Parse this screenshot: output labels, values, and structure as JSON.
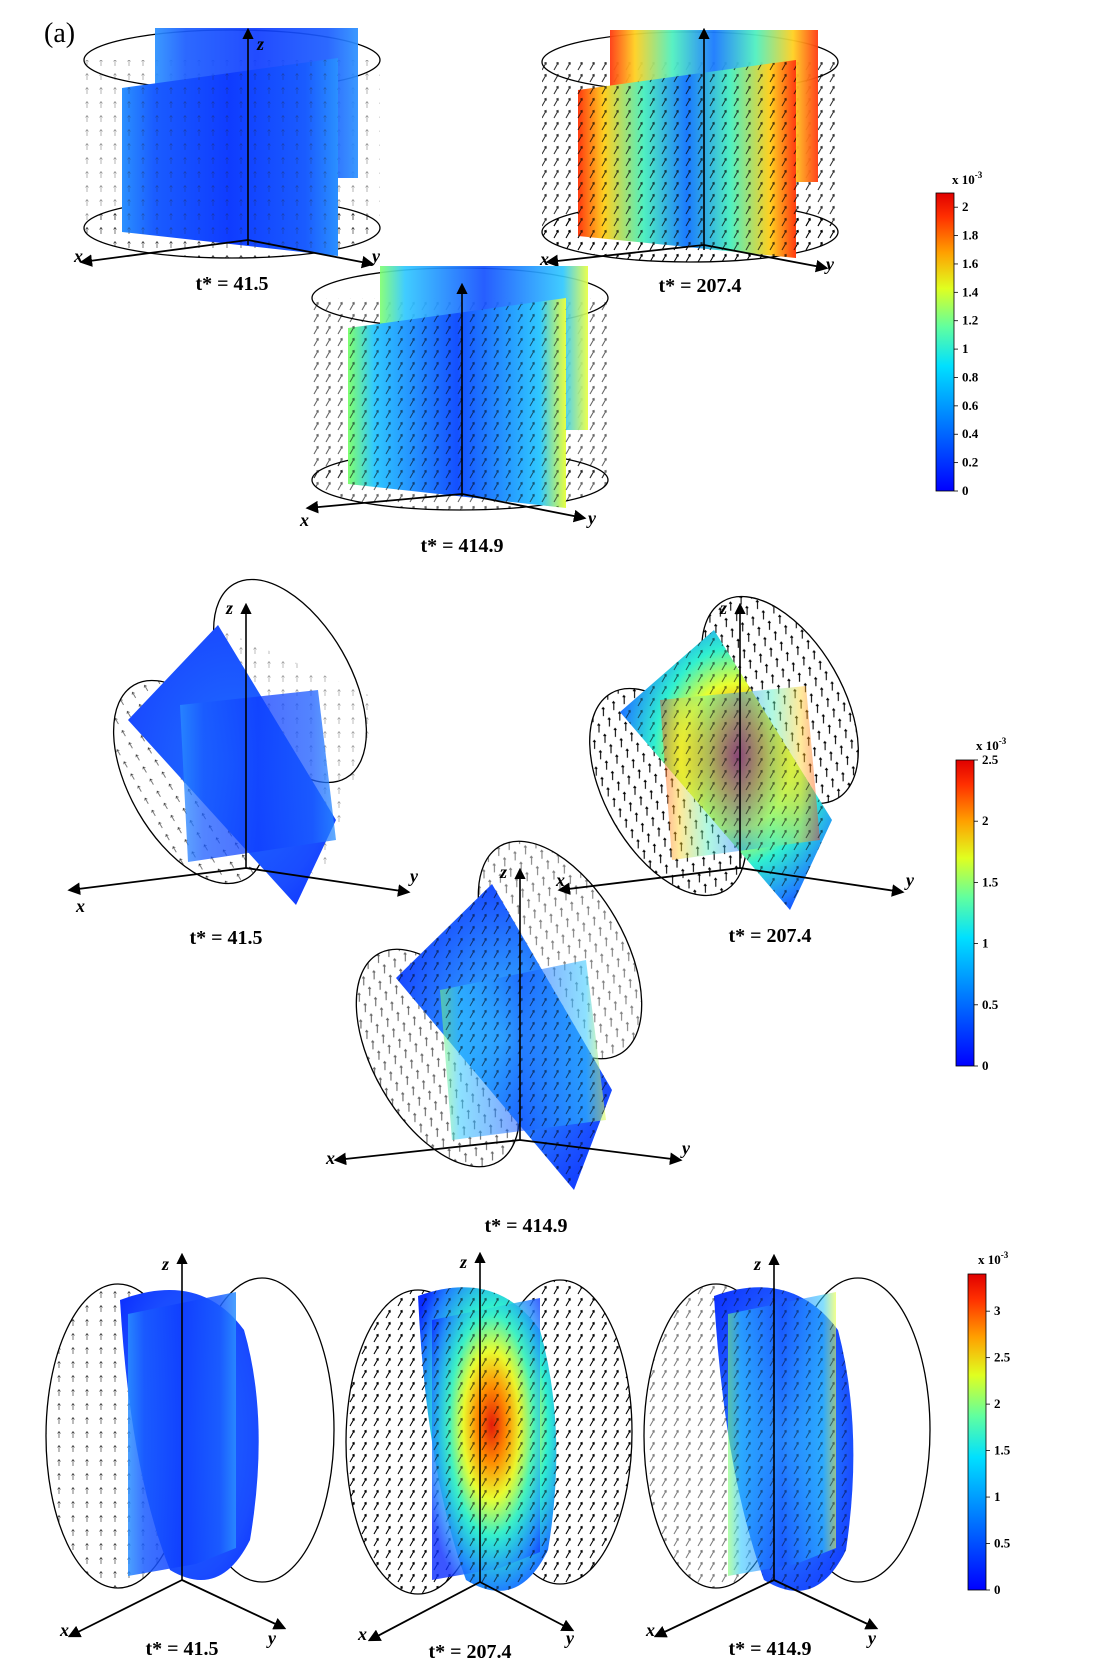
{
  "panel_label": "(a)",
  "axis_names": {
    "x": "x",
    "y": "y",
    "z": "z"
  },
  "time_labels": [
    "t* = 41.5",
    "t* = 207.4",
    "t* = 414.9"
  ],
  "colorbars": [
    {
      "exponent": "x 10",
      "power": "-3",
      "ticks": [
        "2",
        "1.8",
        "1.6",
        "1.4",
        "1.2",
        "1",
        "0.8",
        "0.6",
        "0.4",
        "0.2",
        "0"
      ],
      "max": 2.1
    },
    {
      "exponent": "x 10",
      "power": "-3",
      "ticks": [
        "2.5",
        "2",
        "1.5",
        "1",
        "0.5",
        "0"
      ],
      "max": 2.5
    },
    {
      "exponent": "x 10",
      "power": "-3",
      "ticks": [
        "3",
        "2.5",
        "2",
        "1.5",
        "1",
        "0.5",
        "0"
      ],
      "max": 3.4
    }
  ],
  "colormap": [
    "#00007f",
    "#0000ff",
    "#007fff",
    "#00ffff",
    "#7fff7f",
    "#ffff00",
    "#ff7f00",
    "#ff0000",
    "#7f0000"
  ]
}
